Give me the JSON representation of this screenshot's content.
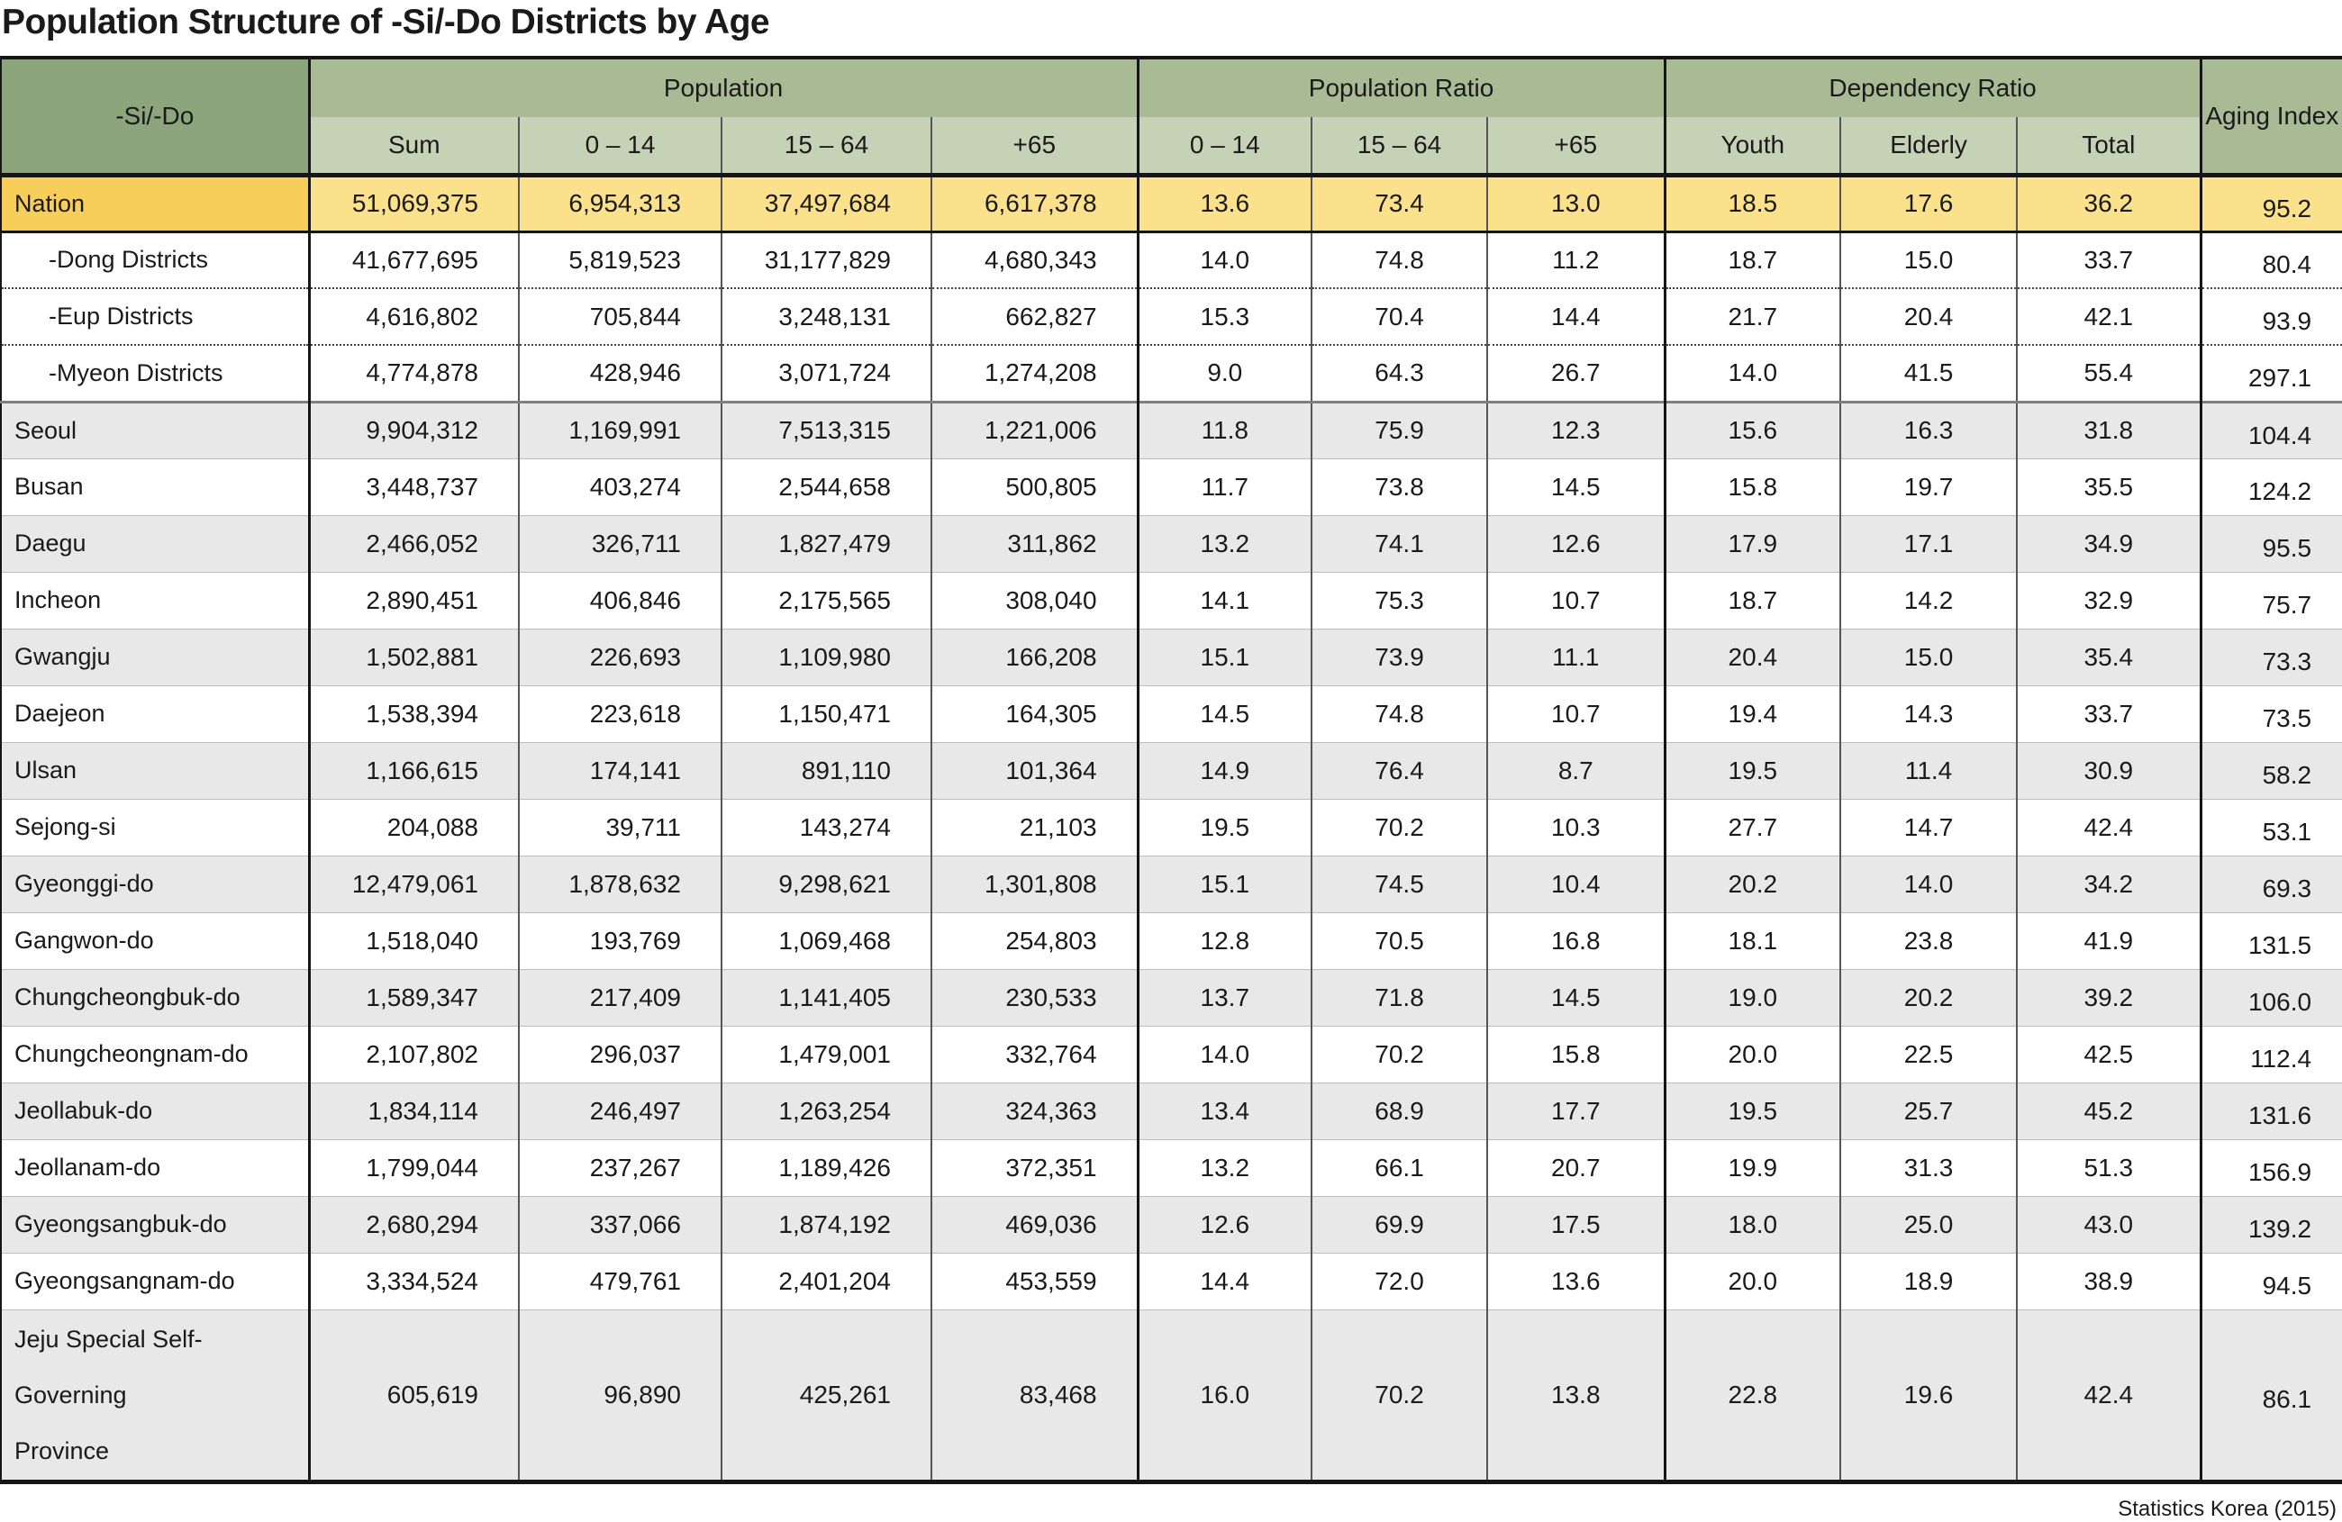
{
  "title": "Population Structure of -Si/-Do Districts by Age",
  "source": "Statistics Korea (2015)",
  "chart_data": {
    "type": "table",
    "title": "Population Structure of -Si/-Do Districts by Age",
    "corner_header": "-Si/-Do",
    "groups": [
      {
        "label": "Population",
        "columns": [
          "Sum",
          "0 – 14",
          "15 – 64",
          "+65"
        ]
      },
      {
        "label": "Population Ratio",
        "columns": [
          "0 – 14",
          "15 – 64",
          "+65"
        ]
      },
      {
        "label": "Dependency Ratio",
        "columns": [
          "Youth",
          "Elderly",
          "Total"
        ]
      },
      {
        "label": "Aging Index",
        "columns": []
      }
    ],
    "column_keys": [
      "pop-sum",
      "pop-0-14",
      "pop-15-64",
      "pop-65plus",
      "ratio-0-14",
      "ratio-15-64",
      "ratio-65plus",
      "dep-youth",
      "dep-elderly",
      "dep-total",
      "aging-index"
    ],
    "rows": [
      {
        "name": "Nation",
        "values": [
          "51,069,375",
          "6,954,313",
          "37,497,684",
          "6,617,378",
          "13.6",
          "73.4",
          "13.0",
          "18.5",
          "17.6",
          "36.2",
          "95.2"
        ]
      },
      {
        "name": "-Dong Districts",
        "values": [
          "41,677,695",
          "5,819,523",
          "31,177,829",
          "4,680,343",
          "14.0",
          "74.8",
          "11.2",
          "18.7",
          "15.0",
          "33.7",
          "80.4"
        ]
      },
      {
        "name": "-Eup Districts",
        "values": [
          "4,616,802",
          "705,844",
          "3,248,131",
          "662,827",
          "15.3",
          "70.4",
          "14.4",
          "21.7",
          "20.4",
          "42.1",
          "93.9"
        ]
      },
      {
        "name": "-Myeon Districts",
        "values": [
          "4,774,878",
          "428,946",
          "3,071,724",
          "1,274,208",
          "9.0",
          "64.3",
          "26.7",
          "14.0",
          "41.5",
          "55.4",
          "297.1"
        ]
      },
      {
        "name": "Seoul",
        "values": [
          "9,904,312",
          "1,169,991",
          "7,513,315",
          "1,221,006",
          "11.8",
          "75.9",
          "12.3",
          "15.6",
          "16.3",
          "31.8",
          "104.4"
        ]
      },
      {
        "name": "Busan",
        "values": [
          "3,448,737",
          "403,274",
          "2,544,658",
          "500,805",
          "11.7",
          "73.8",
          "14.5",
          "15.8",
          "19.7",
          "35.5",
          "124.2"
        ]
      },
      {
        "name": "Daegu",
        "values": [
          "2,466,052",
          "326,711",
          "1,827,479",
          "311,862",
          "13.2",
          "74.1",
          "12.6",
          "17.9",
          "17.1",
          "34.9",
          "95.5"
        ]
      },
      {
        "name": "Incheon",
        "values": [
          "2,890,451",
          "406,846",
          "2,175,565",
          "308,040",
          "14.1",
          "75.3",
          "10.7",
          "18.7",
          "14.2",
          "32.9",
          "75.7"
        ]
      },
      {
        "name": "Gwangju",
        "values": [
          "1,502,881",
          "226,693",
          "1,109,980",
          "166,208",
          "15.1",
          "73.9",
          "11.1",
          "20.4",
          "15.0",
          "35.4",
          "73.3"
        ]
      },
      {
        "name": "Daejeon",
        "values": [
          "1,538,394",
          "223,618",
          "1,150,471",
          "164,305",
          "14.5",
          "74.8",
          "10.7",
          "19.4",
          "14.3",
          "33.7",
          "73.5"
        ]
      },
      {
        "name": "Ulsan",
        "values": [
          "1,166,615",
          "174,141",
          "891,110",
          "101,364",
          "14.9",
          "76.4",
          "8.7",
          "19.5",
          "11.4",
          "30.9",
          "58.2"
        ]
      },
      {
        "name": "Sejong-si",
        "values": [
          "204,088",
          "39,711",
          "143,274",
          "21,103",
          "19.5",
          "70.2",
          "10.3",
          "27.7",
          "14.7",
          "42.4",
          "53.1"
        ]
      },
      {
        "name": "Gyeonggi-do",
        "values": [
          "12,479,061",
          "1,878,632",
          "9,298,621",
          "1,301,808",
          "15.1",
          "74.5",
          "10.4",
          "20.2",
          "14.0",
          "34.2",
          "69.3"
        ]
      },
      {
        "name": "Gangwon-do",
        "values": [
          "1,518,040",
          "193,769",
          "1,069,468",
          "254,803",
          "12.8",
          "70.5",
          "16.8",
          "18.1",
          "23.8",
          "41.9",
          "131.5"
        ]
      },
      {
        "name": "Chungcheongbuk-do",
        "values": [
          "1,589,347",
          "217,409",
          "1,141,405",
          "230,533",
          "13.7",
          "71.8",
          "14.5",
          "19.0",
          "20.2",
          "39.2",
          "106.0"
        ]
      },
      {
        "name": "Chungcheongnam-do",
        "values": [
          "2,107,802",
          "296,037",
          "1,479,001",
          "332,764",
          "14.0",
          "70.2",
          "15.8",
          "20.0",
          "22.5",
          "42.5",
          "112.4"
        ]
      },
      {
        "name": "Jeollabuk-do",
        "values": [
          "1,834,114",
          "246,497",
          "1,263,254",
          "324,363",
          "13.4",
          "68.9",
          "17.7",
          "19.5",
          "25.7",
          "45.2",
          "131.6"
        ]
      },
      {
        "name": "Jeollanam-do",
        "values": [
          "1,799,044",
          "237,267",
          "1,189,426",
          "372,351",
          "13.2",
          "66.1",
          "20.7",
          "19.9",
          "31.3",
          "51.3",
          "156.9"
        ]
      },
      {
        "name": "Gyeongsangbuk-do",
        "values": [
          "2,680,294",
          "337,066",
          "1,874,192",
          "469,036",
          "12.6",
          "69.9",
          "17.5",
          "18.0",
          "25.0",
          "43.0",
          "139.2"
        ]
      },
      {
        "name": "Gyeongsangnam-do",
        "values": [
          "3,334,524",
          "479,761",
          "2,401,204",
          "453,559",
          "14.4",
          "72.0",
          "13.6",
          "20.0",
          "18.9",
          "38.9",
          "94.5"
        ]
      },
      {
        "name": "Jeju Special Self-Governing\nProvince",
        "values": [
          "605,619",
          "96,890",
          "425,261",
          "83,468",
          "16.0",
          "70.2",
          "13.8",
          "22.8",
          "19.6",
          "42.4",
          "86.1"
        ]
      }
    ]
  }
}
